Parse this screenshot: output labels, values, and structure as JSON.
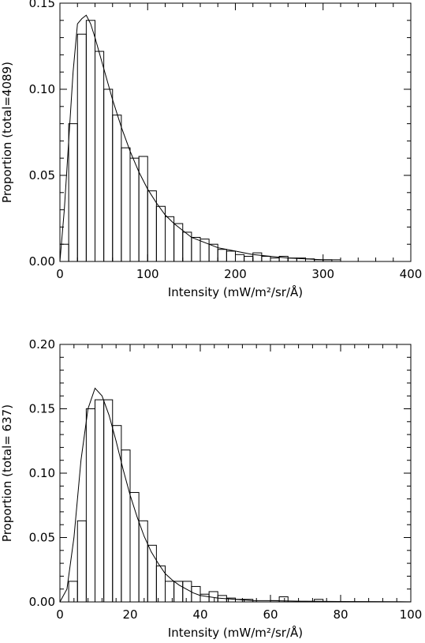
{
  "chart_data": [
    {
      "type": "bar",
      "title": "",
      "xlabel": "Intensity (mW/m²/sr/Å)",
      "ylabel": "Proportion (total=4089)",
      "xlim": [
        0,
        400
      ],
      "ylim": [
        0,
        0.15
      ],
      "xticks": [
        0,
        100,
        200,
        300,
        400
      ],
      "xtick_labels": [
        "0",
        "100",
        "200",
        "300",
        "400"
      ],
      "yticks": [
        0,
        0.05,
        0.1,
        0.15
      ],
      "ytick_labels": [
        "0.00",
        "0.05",
        "0.10",
        "0.15"
      ],
      "bin_width": 10,
      "bins": [
        {
          "x0": 0,
          "value": 0.01
        },
        {
          "x0": 10,
          "value": 0.08
        },
        {
          "x0": 20,
          "value": 0.132
        },
        {
          "x0": 30,
          "value": 0.14
        },
        {
          "x0": 40,
          "value": 0.122
        },
        {
          "x0": 50,
          "value": 0.1
        },
        {
          "x0": 60,
          "value": 0.085
        },
        {
          "x0": 70,
          "value": 0.066
        },
        {
          "x0": 80,
          "value": 0.06
        },
        {
          "x0": 90,
          "value": 0.061
        },
        {
          "x0": 100,
          "value": 0.041
        },
        {
          "x0": 110,
          "value": 0.032
        },
        {
          "x0": 120,
          "value": 0.026
        },
        {
          "x0": 130,
          "value": 0.022
        },
        {
          "x0": 140,
          "value": 0.017
        },
        {
          "x0": 150,
          "value": 0.014
        },
        {
          "x0": 160,
          "value": 0.013
        },
        {
          "x0": 170,
          "value": 0.01
        },
        {
          "x0": 180,
          "value": 0.007
        },
        {
          "x0": 190,
          "value": 0.006
        },
        {
          "x0": 200,
          "value": 0.004
        },
        {
          "x0": 210,
          "value": 0.003
        },
        {
          "x0": 220,
          "value": 0.005
        },
        {
          "x0": 230,
          "value": 0.003
        },
        {
          "x0": 240,
          "value": 0.002
        },
        {
          "x0": 250,
          "value": 0.003
        },
        {
          "x0": 260,
          "value": 0.002
        },
        {
          "x0": 270,
          "value": 0.002
        },
        {
          "x0": 280,
          "value": 0.0015
        },
        {
          "x0": 290,
          "value": 0.001
        },
        {
          "x0": 300,
          "value": 0.001
        }
      ],
      "fit": {
        "x": [
          0,
          5,
          10,
          15,
          20,
          25,
          30,
          35,
          40,
          50,
          60,
          70,
          80,
          90,
          100,
          110,
          120,
          130,
          140,
          150,
          160,
          170,
          180,
          190,
          200,
          220,
          240,
          260,
          280,
          300,
          320
        ],
        "y": [
          0.0,
          0.03,
          0.07,
          0.11,
          0.138,
          0.141,
          0.143,
          0.138,
          0.13,
          0.112,
          0.094,
          0.078,
          0.064,
          0.052,
          0.042,
          0.034,
          0.027,
          0.022,
          0.018,
          0.014,
          0.012,
          0.01,
          0.008,
          0.007,
          0.006,
          0.004,
          0.003,
          0.002,
          0.0015,
          0.001,
          0.001
        ]
      }
    },
    {
      "type": "bar",
      "title": "",
      "xlabel": "Intensity (mW/m²/sr/Å)",
      "ylabel": "Proportion (total= 637)",
      "xlim": [
        0,
        100
      ],
      "ylim": [
        0,
        0.2
      ],
      "xticks": [
        0,
        20,
        40,
        60,
        80,
        100
      ],
      "xtick_labels": [
        "0",
        "20",
        "40",
        "60",
        "80",
        "100"
      ],
      "yticks": [
        0,
        0.05,
        0.1,
        0.15,
        0.2
      ],
      "ytick_labels": [
        "0.00",
        "0.05",
        "0.10",
        "0.15",
        "0.20"
      ],
      "bin_width": 2.5,
      "bins": [
        {
          "x0": 0,
          "value": 0.0
        },
        {
          "x0": 2.5,
          "value": 0.016
        },
        {
          "x0": 5,
          "value": 0.063
        },
        {
          "x0": 7.5,
          "value": 0.15
        },
        {
          "x0": 10,
          "value": 0.157
        },
        {
          "x0": 12.5,
          "value": 0.157
        },
        {
          "x0": 15,
          "value": 0.137
        },
        {
          "x0": 17.5,
          "value": 0.118
        },
        {
          "x0": 20,
          "value": 0.085
        },
        {
          "x0": 22.5,
          "value": 0.063
        },
        {
          "x0": 25,
          "value": 0.044
        },
        {
          "x0": 27.5,
          "value": 0.028
        },
        {
          "x0": 30,
          "value": 0.016
        },
        {
          "x0": 32.5,
          "value": 0.016
        },
        {
          "x0": 35,
          "value": 0.016
        },
        {
          "x0": 37.5,
          "value": 0.012
        },
        {
          "x0": 40,
          "value": 0.006
        },
        {
          "x0": 42.5,
          "value": 0.008
        },
        {
          "x0": 45,
          "value": 0.005
        },
        {
          "x0": 47.5,
          "value": 0.003
        },
        {
          "x0": 50,
          "value": 0.002
        },
        {
          "x0": 52.5,
          "value": 0.002
        },
        {
          "x0": 55,
          "value": 0.0
        },
        {
          "x0": 57.5,
          "value": 0.0
        },
        {
          "x0": 60,
          "value": 0.001
        },
        {
          "x0": 62.5,
          "value": 0.004
        },
        {
          "x0": 65,
          "value": 0.0
        },
        {
          "x0": 67.5,
          "value": 0.0
        },
        {
          "x0": 70,
          "value": 0.0
        },
        {
          "x0": 72.5,
          "value": 0.002
        },
        {
          "x0": 75,
          "value": 0.0
        },
        {
          "x0": 77.5,
          "value": 0.0
        },
        {
          "x0": 80,
          "value": 0.0
        },
        {
          "x0": 82.5,
          "value": 0.0
        },
        {
          "x0": 85,
          "value": 0.0
        },
        {
          "x0": 87.5,
          "value": 0.0
        },
        {
          "x0": 90,
          "value": 0.0
        }
      ],
      "fit": {
        "x": [
          0,
          2,
          4,
          6,
          8,
          10,
          12,
          14,
          16,
          18,
          20,
          22,
          24,
          26,
          28,
          30,
          32,
          34,
          36,
          38,
          40,
          45,
          50,
          55,
          60,
          70,
          80,
          90,
          100
        ],
        "y": [
          0.0,
          0.01,
          0.05,
          0.11,
          0.15,
          0.166,
          0.16,
          0.145,
          0.125,
          0.103,
          0.083,
          0.066,
          0.051,
          0.039,
          0.03,
          0.022,
          0.017,
          0.013,
          0.01,
          0.007,
          0.005,
          0.003,
          0.002,
          0.001,
          0.001,
          0.0005,
          0.0003,
          0.0002,
          0.0001
        ]
      }
    }
  ]
}
